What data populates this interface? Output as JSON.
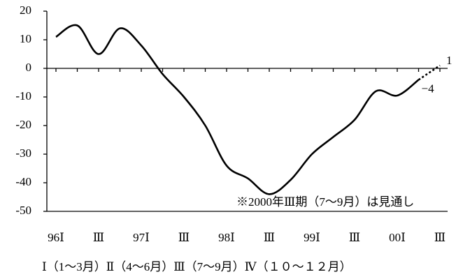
{
  "chart_data": {
    "type": "line",
    "categories": [
      "96Ⅰ",
      null,
      "Ⅲ",
      null,
      "97Ⅰ",
      null,
      "Ⅲ",
      null,
      "98Ⅰ",
      null,
      "Ⅲ",
      null,
      "99Ⅰ",
      null,
      "Ⅲ",
      null,
      "00Ⅰ",
      null,
      "Ⅲ"
    ],
    "series": [
      {
        "color": "#000000",
        "style": "solid",
        "values": [
          11,
          15,
          5,
          14,
          8,
          -2,
          -10,
          -20,
          -34,
          -38.5,
          -44,
          -39,
          -30,
          -24,
          -18,
          -8,
          -9.5,
          -4,
          null
        ]
      },
      {
        "color": "#000000",
        "style": "dotted",
        "values": [
          null,
          null,
          null,
          null,
          null,
          null,
          null,
          null,
          null,
          null,
          null,
          null,
          null,
          null,
          null,
          null,
          null,
          -4,
          1
        ],
        "value_labels": [
          null,
          null,
          null,
          null,
          null,
          null,
          null,
          null,
          null,
          null,
          null,
          null,
          null,
          null,
          null,
          null,
          null,
          "−4",
          "1"
        ]
      }
    ],
    "ylim": [
      -50,
      20
    ],
    "yticks": [
      -50,
      -40,
      -30,
      -20,
      -10,
      0,
      10,
      20
    ],
    "annotation": "※2000年Ⅲ期（7～9月）は見通し",
    "footnote": "Ⅰ（1～3月）Ⅱ（4～6月）Ⅲ（7～9月）Ⅳ（１０～１２月）"
  }
}
